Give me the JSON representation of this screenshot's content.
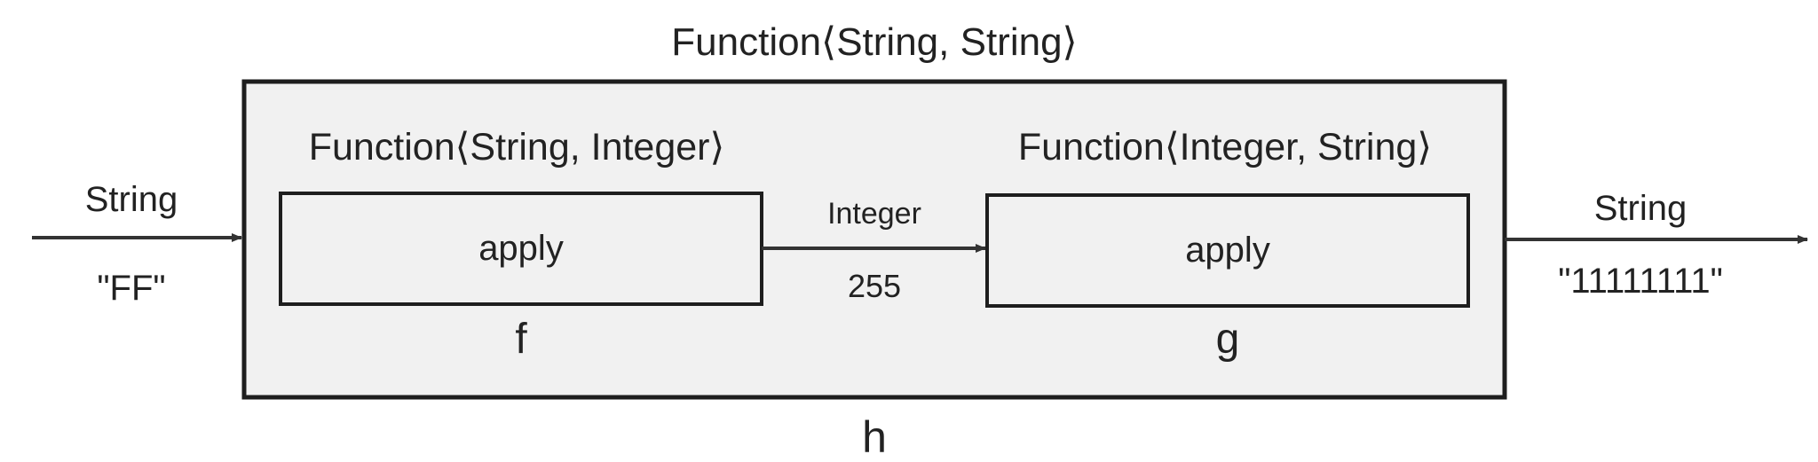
{
  "outer": {
    "type_label": "Function⟨String, String⟩",
    "name": "h",
    "fill": "#f1f1f1",
    "stroke": "#1e1e1e"
  },
  "f": {
    "type_label": "Function⟨String, Integer⟩",
    "method": "apply",
    "name": "f"
  },
  "g": {
    "type_label": "Function⟨Integer, String⟩",
    "method": "apply",
    "name": "g"
  },
  "input": {
    "type": "String",
    "value": "\"FF\""
  },
  "middle": {
    "type": "Integer",
    "value": "255"
  },
  "output": {
    "type": "String",
    "value": "\"11111111\""
  },
  "colors": {
    "inner_fill": "#f1f1f1",
    "stroke": "#1e1e1e",
    "arrow": "#333333",
    "text": "#222222"
  }
}
